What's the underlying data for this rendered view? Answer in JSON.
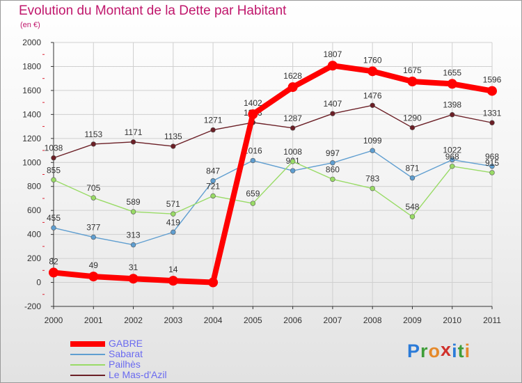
{
  "title": "Evolution du Montant de la Dette par Habitant",
  "unit": "(en €)",
  "logo": {
    "text": "Proxiti",
    "letter_colors": [
      "#2b7bd8",
      "#3f9e3a",
      "#e5892a",
      "#d0302b",
      "#2b7bd8",
      "#3f9e3a",
      "#e5892a"
    ]
  },
  "chart_data": {
    "type": "line",
    "categories": [
      "2000",
      "2001",
      "2002",
      "2003",
      "2004",
      "2005",
      "2006",
      "2007",
      "2008",
      "2009",
      "2010",
      "2011"
    ],
    "ylim": [
      -200,
      2000
    ],
    "yticks": [
      -200,
      0,
      200,
      400,
      600,
      800,
      1000,
      1200,
      1400,
      1600,
      1800,
      2000
    ],
    "grid": true,
    "legend_position": "bottom-left",
    "series": [
      {
        "name": "GABRE",
        "color": "#ff0000",
        "emphasis": true,
        "values": [
          82,
          49,
          31,
          14,
          0,
          1402,
          1628,
          1807,
          1760,
          1675,
          1655,
          1596
        ],
        "labels": [
          "82",
          "49",
          "31",
          "14",
          "",
          "1402",
          "1628",
          "1807",
          "1760",
          "1675",
          "1655",
          "1596"
        ]
      },
      {
        "name": "Sabarat",
        "color": "#5f9ed0",
        "emphasis": false,
        "values": [
          455,
          377,
          313,
          419,
          847,
          1016,
          931,
          997,
          1099,
          871,
          1022,
          968
        ],
        "labels": [
          "455",
          "377",
          "313",
          "419",
          "847",
          "1016",
          "931",
          "997",
          "1099",
          "871",
          "1022",
          "968"
        ]
      },
      {
        "name": "Pailhès",
        "color": "#99db66",
        "emphasis": false,
        "values": [
          855,
          705,
          589,
          571,
          721,
          659,
          1008,
          860,
          783,
          548,
          968,
          915
        ],
        "labels": [
          "855",
          "705",
          "589",
          "571",
          "721",
          "659",
          "1008",
          "860",
          "783",
          "548",
          "968",
          "915"
        ]
      },
      {
        "name": "Le Mas-d'Azil",
        "color": "#6b1f26",
        "emphasis": false,
        "values": [
          1038,
          1153,
          1171,
          1135,
          1271,
          1333,
          1287,
          1407,
          1476,
          1290,
          1398,
          1331
        ],
        "labels": [
          "1038",
          "1153",
          "1171",
          "1135",
          "1271",
          "1333",
          "1287",
          "1407",
          "1476",
          "1290",
          "1398",
          "1331"
        ]
      }
    ]
  }
}
